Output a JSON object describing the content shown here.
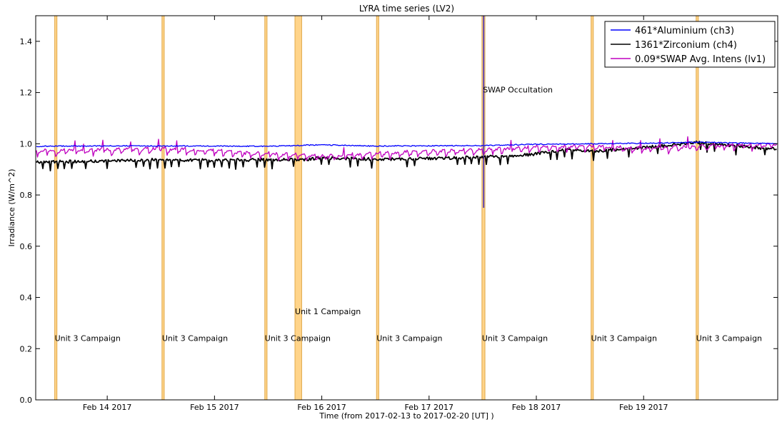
{
  "chart_data": {
    "type": "line",
    "title": "LYRA time series (LV2)",
    "xlabel": "Time (from 2017-02-13 to 2017-02-20 [UT] )",
    "ylabel": "Irradiance (W/m^2)",
    "xlim": [
      "2017-02-13T08:00",
      "2017-02-20T06:00"
    ],
    "ylim": [
      0.0,
      1.5
    ],
    "x_ticks": [
      {
        "t": "2017-02-14T00:00",
        "label": "Feb 14 2017"
      },
      {
        "t": "2017-02-15T00:00",
        "label": "Feb 15 2017"
      },
      {
        "t": "2017-02-16T00:00",
        "label": "Feb 16 2017"
      },
      {
        "t": "2017-02-17T00:00",
        "label": "Feb 17 2017"
      },
      {
        "t": "2017-02-18T00:00",
        "label": "Feb 18 2017"
      },
      {
        "t": "2017-02-19T00:00",
        "label": "Feb 19 2017"
      }
    ],
    "y_ticks": [
      {
        "v": 0.0,
        "label": "0.0"
      },
      {
        "v": 0.2,
        "label": "0.2"
      },
      {
        "v": 0.4,
        "label": "0.4"
      },
      {
        "v": 0.6,
        "label": "0.6"
      },
      {
        "v": 0.8,
        "label": "0.8"
      },
      {
        "v": 1.0,
        "label": "1.0"
      },
      {
        "v": 1.2,
        "label": "1.2"
      },
      {
        "v": 1.4,
        "label": "1.4"
      }
    ],
    "grid": false,
    "legend_position": "top-right",
    "series": [
      {
        "name": "461*Aluminium (ch3)",
        "color": "#0000ff",
        "points": [
          [
            "2017-02-13T08:00",
            0.99
          ],
          [
            "2017-02-14T00:00",
            0.992
          ],
          [
            "2017-02-15T00:00",
            0.991
          ],
          [
            "2017-02-15T12:00",
            0.99
          ],
          [
            "2017-02-16T00:00",
            0.996
          ],
          [
            "2017-02-16T12:00",
            0.991
          ],
          [
            "2017-02-17T00:00",
            0.992
          ],
          [
            "2017-02-17T12:00",
            0.993
          ],
          [
            "2017-02-18T00:00",
            0.998
          ],
          [
            "2017-02-18T12:00",
            1.0
          ],
          [
            "2017-02-19T00:00",
            1.002
          ],
          [
            "2017-02-19T12:00",
            1.006
          ],
          [
            "2017-02-20T06:00",
            1.0
          ]
        ]
      },
      {
        "name": "1361*Zirconium (ch4)",
        "color": "#000000",
        "points": [
          [
            "2017-02-13T08:00",
            0.928
          ],
          [
            "2017-02-14T00:00",
            0.933
          ],
          [
            "2017-02-14T12:00",
            0.938
          ],
          [
            "2017-02-15T00:00",
            0.935
          ],
          [
            "2017-02-15T12:00",
            0.938
          ],
          [
            "2017-02-15T20:00",
            0.938
          ],
          [
            "2017-02-16T00:00",
            0.945
          ],
          [
            "2017-02-16T12:00",
            0.94
          ],
          [
            "2017-02-17T00:00",
            0.942
          ],
          [
            "2017-02-17T12:00",
            0.948
          ],
          [
            "2017-02-17T20:00",
            0.955
          ],
          [
            "2017-02-18T00:00",
            0.96
          ],
          [
            "2017-02-18T06:00",
            0.978
          ],
          [
            "2017-02-18T12:00",
            0.97
          ],
          [
            "2017-02-19T00:00",
            0.985
          ],
          [
            "2017-02-19T12:00",
            1.005
          ],
          [
            "2017-02-20T06:00",
            0.978
          ]
        ]
      },
      {
        "name": "0.09*SWAP Avg. Intens (lv1)",
        "color": "#bf00bf",
        "points": [
          [
            "2017-02-13T08:00",
            0.975
          ],
          [
            "2017-02-14T00:00",
            0.98
          ],
          [
            "2017-02-14T12:00",
            0.985
          ],
          [
            "2017-02-15T00:00",
            0.975
          ],
          [
            "2017-02-15T12:00",
            0.965
          ],
          [
            "2017-02-16T00:00",
            0.955
          ],
          [
            "2017-02-16T12:00",
            0.965
          ],
          [
            "2017-02-17T00:00",
            0.975
          ],
          [
            "2017-02-17T12:00",
            0.98
          ],
          [
            "2017-02-18T00:00",
            0.99
          ],
          [
            "2017-02-18T12:00",
            0.995
          ],
          [
            "2017-02-19T00:00",
            0.985
          ],
          [
            "2017-02-19T12:00",
            0.995
          ],
          [
            "2017-02-20T06:00",
            1.0
          ]
        ]
      }
    ],
    "campaign_bands": [
      {
        "start": "2017-02-13T12:15",
        "end": "2017-02-13T12:45",
        "label": "Unit 3 Campaign",
        "label_y": 0.23
      },
      {
        "start": "2017-02-14T12:15",
        "end": "2017-02-14T12:45",
        "label": "Unit 3 Campaign",
        "label_y": 0.23
      },
      {
        "start": "2017-02-15T11:15",
        "end": "2017-02-15T11:45",
        "label": "Unit 3 Campaign",
        "label_y": 0.23
      },
      {
        "start": "2017-02-15T18:00",
        "end": "2017-02-15T19:30",
        "label": "Unit 1 Campaign",
        "label_y": 0.335
      },
      {
        "start": "2017-02-16T12:15",
        "end": "2017-02-16T12:45",
        "label": "Unit 3 Campaign",
        "label_y": 0.23
      },
      {
        "start": "2017-02-17T11:50",
        "end": "2017-02-17T12:30",
        "label": "Unit 3 Campaign",
        "label_y": 0.23
      },
      {
        "start": "2017-02-18T12:15",
        "end": "2017-02-18T12:45",
        "label": "Unit 3 Campaign",
        "label_y": 0.23
      },
      {
        "start": "2017-02-19T11:45",
        "end": "2017-02-19T12:15",
        "label": "Unit 3 Campaign",
        "label_y": 0.23
      }
    ],
    "occultation": {
      "start": "2017-02-17T12:03",
      "end": "2017-02-17T12:20",
      "label": "SWAP Occultation",
      "label_y": 1.2,
      "color": "#6b6fc7"
    },
    "band_color": "#ffd48a",
    "band_edge_color": "#e0a84a"
  }
}
